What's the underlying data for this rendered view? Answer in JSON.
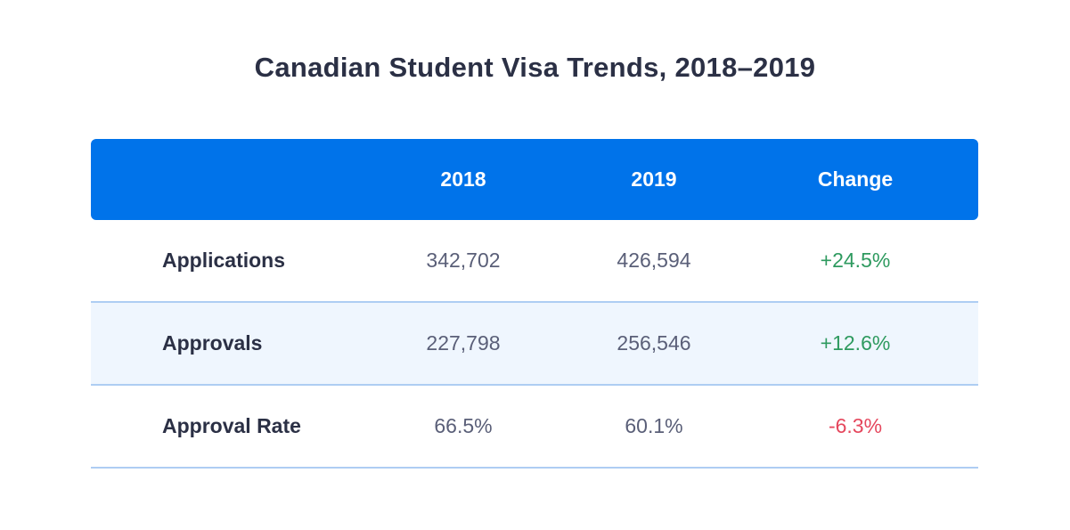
{
  "title": "Canadian Student Visa Trends, 2018–2019",
  "table": {
    "headers": [
      "",
      "2018",
      "2019",
      "Change"
    ],
    "rows": [
      {
        "label": "Applications",
        "y2018": "342,702",
        "y2019": "426,594",
        "change": "+24.5%",
        "trend": "positive"
      },
      {
        "label": "Approvals",
        "y2018": "227,798",
        "y2019": "256,546",
        "change": "+12.6%",
        "trend": "positive"
      },
      {
        "label": "Approval Rate",
        "y2018": "66.5%",
        "y2019": "60.1%",
        "change": "-6.3%",
        "trend": "negative"
      }
    ]
  },
  "colors": {
    "header_bg": "#0073ea",
    "positive": "#2e9a5f",
    "negative": "#e5475d",
    "alt_row_bg": "#eff6fe",
    "row_border": "#aecdf3"
  },
  "chart_data": {
    "type": "table",
    "title": "Canadian Student Visa Trends, 2018–2019",
    "columns": [
      "",
      "2018",
      "2019",
      "Change"
    ],
    "rows": [
      [
        "Applications",
        342702,
        426594,
        "+24.5%"
      ],
      [
        "Approvals",
        227798,
        256546,
        "+12.6%"
      ],
      [
        "Approval Rate",
        "66.5%",
        "60.1%",
        "-6.3%"
      ]
    ]
  }
}
